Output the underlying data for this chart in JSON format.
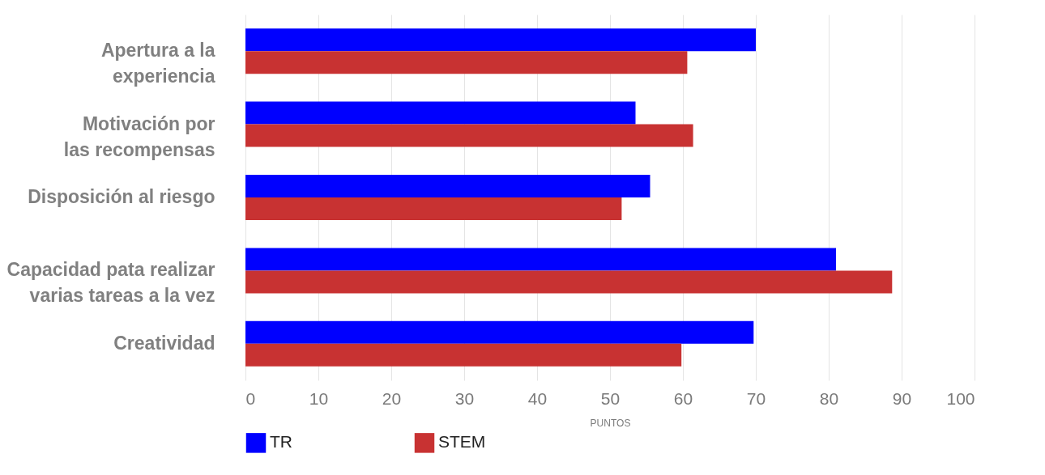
{
  "chart_data": {
    "type": "bar",
    "orientation": "horizontal",
    "xlabel": "PUNTOS",
    "categories": [
      "Apertura a la experiencia",
      "Motivación por las recompensas",
      "Disposición al riesgo",
      "Capacidad pata realizar varias tareas a la vez",
      "Creatividad"
    ],
    "series": [
      {
        "name": "TR",
        "color": "#0000ff",
        "values": [
          70,
          53.5,
          55.5,
          81,
          69.7
        ]
      },
      {
        "name": "STEM",
        "color": "#c83232",
        "values": [
          60.6,
          61.4,
          51.6,
          88.7,
          59.8
        ]
      }
    ],
    "xlim": [
      0,
      100
    ],
    "xticks": [
      0,
      10,
      20,
      30,
      40,
      50,
      60,
      70,
      80,
      90,
      100
    ],
    "grid": "x",
    "legend": "bottom"
  }
}
